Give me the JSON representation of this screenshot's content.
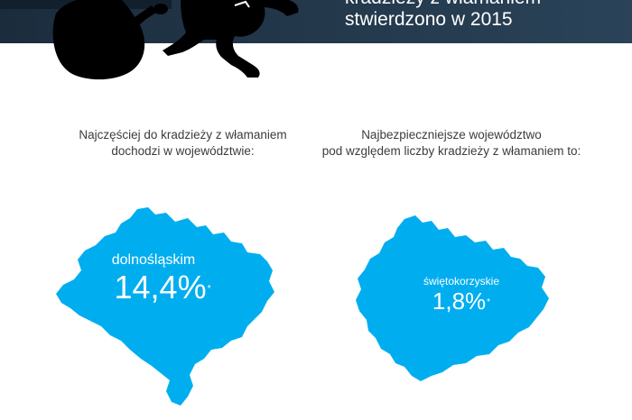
{
  "header": {
    "title_line1": "kradzieży z włamaniem",
    "title_line2": "stwierdzono w 2015",
    "background_color": "#1f3346"
  },
  "illustration": {
    "icon": "thief-with-bag-icon"
  },
  "left": {
    "caption_line1": "Najczęściej do kradzieży z włamaniem",
    "caption_line2": "dochodzi w województwie:",
    "region_name": "dolnośląskim",
    "value": "14,4%",
    "footnote_mark": "*",
    "map_color": "#00aeef"
  },
  "right": {
    "caption_line1": "Najbezpieczniejsze województwo",
    "caption_line2": "pod względem liczby kradzieży z włamaniem to:",
    "region_name": "świętokorzyskie",
    "value": "1,8%",
    "footnote_mark": "*",
    "map_color": "#00aeef"
  }
}
